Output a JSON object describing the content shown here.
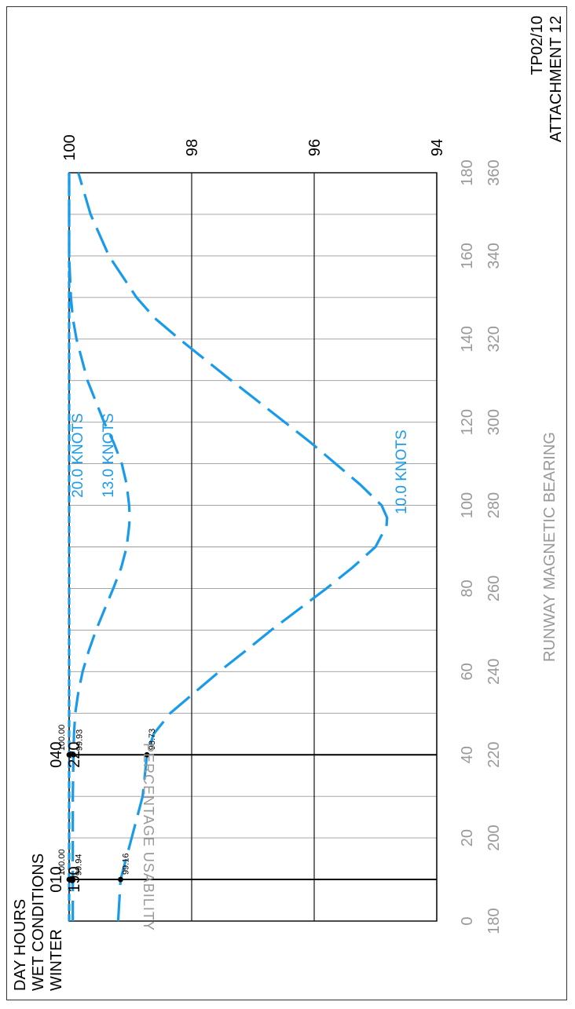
{
  "header": {
    "doc_ref": "TP02/10",
    "attachment": "ATTACHMENT 12"
  },
  "conditions": {
    "line1": "DAY HOURS",
    "line2": "WET CONDITIONS",
    "line3": "WINTER"
  },
  "markers": [
    {
      "bearing": 10,
      "label_top": "010",
      "label_bottom": "190",
      "values": [
        {
          "series": "20.0 KNOTS",
          "value": 100.0,
          "label": "100.00"
        },
        {
          "series": "13.0 KNOTS",
          "value": 99.94,
          "label": "99.94"
        },
        {
          "series": "10.0 KNOTS",
          "value": 99.16,
          "label": "99.16"
        }
      ]
    },
    {
      "bearing": 40,
      "label_top": "040",
      "label_bottom": "220",
      "values": [
        {
          "series": "20.0 KNOTS",
          "value": 100.0,
          "label": "100.00"
        },
        {
          "series": "13.0 KNOTS",
          "value": 99.93,
          "label": "99.93"
        },
        {
          "series": "10.0 KNOTS",
          "value": 98.73,
          "label": "98.73"
        }
      ]
    }
  ],
  "chart_data": {
    "type": "line",
    "orientation": "rotated-90",
    "xlabel": "RUNWAY MAGNETIC BEARING",
    "ylabel": "PERCENTAGE USABILITY",
    "xlim": [
      0,
      180
    ],
    "ylim": [
      94,
      100
    ],
    "x_ticks_primary": [
      "0",
      "20",
      "40",
      "60",
      "80",
      "100",
      "120",
      "140",
      "160",
      "180"
    ],
    "x_ticks_secondary": [
      "180",
      "200",
      "220",
      "240",
      "260",
      "280",
      "300",
      "320",
      "340",
      "360"
    ],
    "y_ticks": [
      "94",
      "96",
      "98",
      "100"
    ],
    "grid": true,
    "x": [
      0,
      10,
      20,
      30,
      40,
      45,
      50,
      55,
      60,
      65,
      70,
      75,
      80,
      85,
      90,
      95,
      97,
      100,
      105,
      110,
      115,
      120,
      130,
      140,
      145,
      150,
      160,
      170,
      180
    ],
    "series": [
      {
        "name": "20.0 KNOTS",
        "color": "#1a9bea",
        "values": [
          100,
          100,
          100,
          100,
          100,
          100,
          100,
          100,
          100,
          100,
          100,
          100,
          100,
          100,
          100,
          100,
          100,
          100,
          100,
          100,
          100,
          100,
          100,
          100,
          100,
          100,
          100,
          100,
          100
        ]
      },
      {
        "name": "13.0 KNOTS",
        "color": "#1a9bea",
        "values": [
          99.94,
          99.94,
          99.94,
          99.94,
          99.93,
          99.92,
          99.9,
          99.85,
          99.78,
          99.68,
          99.56,
          99.42,
          99.28,
          99.15,
          99.06,
          99.02,
          99.01,
          99.02,
          99.06,
          99.14,
          99.27,
          99.43,
          99.7,
          99.88,
          99.94,
          99.97,
          100,
          100,
          100
        ]
      },
      {
        "name": "10.0 KNOTS",
        "color": "#1a9bea",
        "values": [
          99.2,
          99.16,
          98.98,
          98.8,
          98.73,
          98.62,
          98.35,
          97.95,
          97.55,
          97.12,
          96.7,
          96.25,
          95.8,
          95.38,
          95.0,
          94.82,
          94.81,
          94.9,
          95.25,
          95.65,
          96.05,
          96.48,
          97.35,
          98.2,
          98.6,
          98.9,
          99.35,
          99.65,
          99.85
        ]
      }
    ]
  }
}
